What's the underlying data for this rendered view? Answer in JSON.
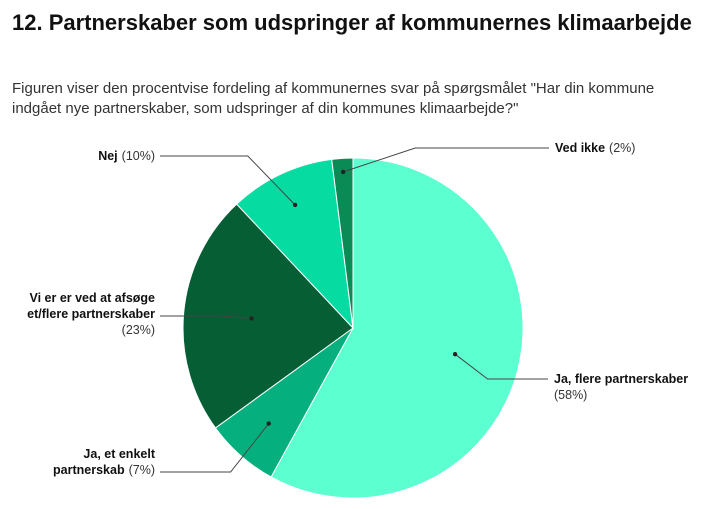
{
  "header": {
    "title": "12. Partnerskaber som udspringer af kommunernes klimaarbejde",
    "subtitle": "Figuren viser den procentvise fordeling af kommunernes svar på spørgsmålet \"Har din kommune indgået nye partnerskaber, som udspringer af din kommunes klimaarbejde?\""
  },
  "chart_data": {
    "type": "pie",
    "title": "12. Partnerskaber som udspringer af kommunernes klimaarbejde",
    "start_angle_deg": 0,
    "direction": "clockwise",
    "slices": [
      {
        "label": "Ja, flere partnerskaber",
        "value": 58,
        "pct_text": "(58%)",
        "color": "#5cffcf"
      },
      {
        "label": "Ja, et enkelt partnerskab",
        "value": 7,
        "pct_text": "(7%)",
        "color": "#06b07e"
      },
      {
        "label": "Vi er er ved at afsøge et/flere partnerskaber",
        "value": 23,
        "pct_text": "(23%)",
        "color": "#065e34"
      },
      {
        "label": "Nej",
        "value": 10,
        "pct_text": "(10%)",
        "color": "#06dba1"
      },
      {
        "label": "Ved ikke",
        "value": 2,
        "pct_text": "(2%)",
        "color": "#0a8a55"
      }
    ]
  }
}
